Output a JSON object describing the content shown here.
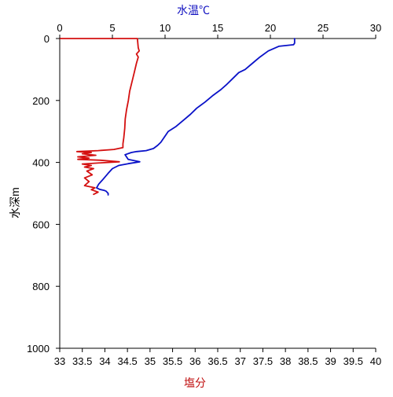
{
  "chart_data": {
    "type": "line",
    "top_axis": {
      "label": "水温℃",
      "label_color": "#1010c0",
      "min": 0,
      "max": 30,
      "ticks": [
        0,
        5,
        10,
        15,
        20,
        25,
        30
      ]
    },
    "bottom_axis": {
      "label": "塩分",
      "label_color": "#c01010",
      "min": 33,
      "max": 40,
      "ticks": [
        "33",
        "33.5",
        "34",
        "34.5",
        "35",
        "35.5",
        "36",
        "36.5",
        "37",
        "37.5",
        "38",
        "38.5",
        "39",
        "39.5",
        "40"
      ]
    },
    "y_axis": {
      "label": "水深m",
      "min": 0,
      "max": 1000,
      "inverted": true,
      "ticks": [
        0,
        200,
        400,
        600,
        800,
        1000
      ]
    },
    "grid": false,
    "series": [
      {
        "key": "temperature",
        "axis": "top",
        "color": "#0a12c8",
        "points": [
          [
            22.3,
            0
          ],
          [
            22.3,
            15
          ],
          [
            22.2,
            20
          ],
          [
            20.8,
            25
          ],
          [
            19.8,
            40
          ],
          [
            19.0,
            60
          ],
          [
            18.3,
            80
          ],
          [
            17.6,
            100
          ],
          [
            17.0,
            110
          ],
          [
            16.4,
            130
          ],
          [
            15.8,
            150
          ],
          [
            15.3,
            165
          ],
          [
            14.5,
            185
          ],
          [
            13.8,
            205
          ],
          [
            13.0,
            225
          ],
          [
            12.4,
            245
          ],
          [
            11.7,
            265
          ],
          [
            11.0,
            285
          ],
          [
            10.3,
            300
          ],
          [
            10.0,
            315
          ],
          [
            9.6,
            335
          ],
          [
            9.3,
            345
          ],
          [
            8.9,
            355
          ],
          [
            8.2,
            362
          ],
          [
            7.3,
            365
          ],
          [
            6.8,
            368
          ],
          [
            6.2,
            375
          ],
          [
            6.5,
            390
          ],
          [
            7.6,
            398
          ],
          [
            6.5,
            404
          ],
          [
            5.6,
            410
          ],
          [
            5.0,
            420
          ],
          [
            4.6,
            435
          ],
          [
            4.1,
            455
          ],
          [
            3.7,
            470
          ],
          [
            3.5,
            482
          ],
          [
            3.8,
            487
          ],
          [
            4.2,
            490
          ],
          [
            4.4,
            493
          ],
          [
            4.6,
            500
          ],
          [
            4.6,
            505
          ]
        ]
      },
      {
        "key": "salinity",
        "axis": "bottom",
        "color": "#d41010",
        "points": [
          [
            33.0,
            0
          ],
          [
            34.72,
            0
          ],
          [
            34.74,
            30
          ],
          [
            34.76,
            40
          ],
          [
            34.7,
            50
          ],
          [
            34.74,
            60
          ],
          [
            34.7,
            80
          ],
          [
            34.65,
            110
          ],
          [
            34.6,
            140
          ],
          [
            34.55,
            170
          ],
          [
            34.52,
            200
          ],
          [
            34.48,
            230
          ],
          [
            34.45,
            260
          ],
          [
            34.44,
            290
          ],
          [
            34.42,
            320
          ],
          [
            34.4,
            340
          ],
          [
            34.4,
            352
          ],
          [
            34.2,
            358
          ],
          [
            33.85,
            362
          ],
          [
            33.38,
            365
          ],
          [
            33.7,
            368
          ],
          [
            33.5,
            372
          ],
          [
            33.8,
            377
          ],
          [
            33.4,
            382
          ],
          [
            33.65,
            386
          ],
          [
            33.4,
            390
          ],
          [
            33.9,
            393
          ],
          [
            34.32,
            398
          ],
          [
            33.95,
            401
          ],
          [
            33.5,
            405
          ],
          [
            33.7,
            410
          ],
          [
            33.55,
            415
          ],
          [
            33.75,
            420
          ],
          [
            33.6,
            428
          ],
          [
            33.72,
            440
          ],
          [
            33.55,
            450
          ],
          [
            33.65,
            462
          ],
          [
            33.55,
            475
          ],
          [
            33.78,
            482
          ],
          [
            33.7,
            488
          ],
          [
            33.85,
            496
          ],
          [
            33.75,
            503
          ]
        ]
      }
    ]
  }
}
